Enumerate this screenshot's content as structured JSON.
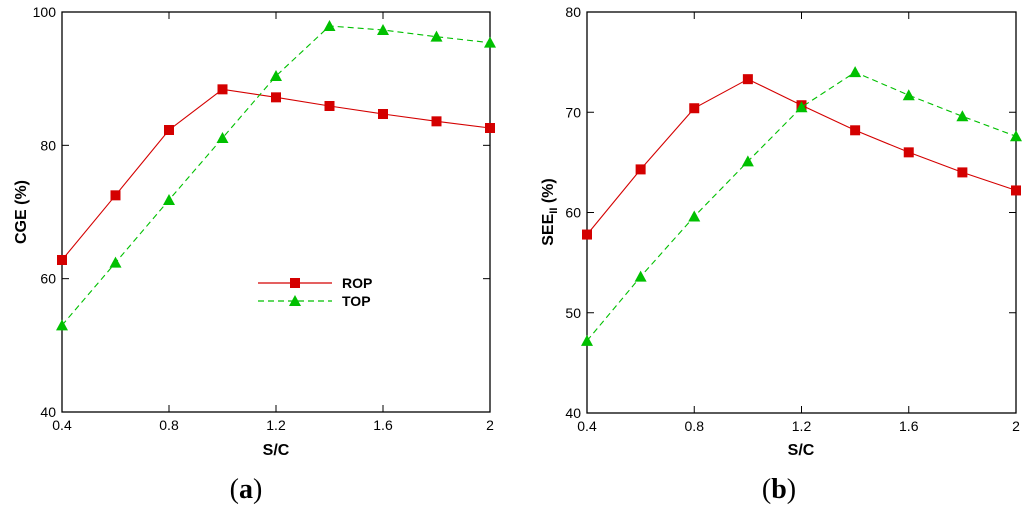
{
  "chart_data": [
    {
      "type": "line",
      "panel_label": "(a)",
      "panel_letter": "a",
      "xlabel": "S/C",
      "ylabel": "CGE (%)",
      "xlim": [
        0.4,
        2.0
      ],
      "ylim": [
        40,
        100
      ],
      "xticks": [
        0.4,
        0.8,
        1.2,
        1.6,
        2.0
      ],
      "xtick_labels": [
        "0.4",
        "0.8",
        "1.2",
        "1.6",
        "2"
      ],
      "yticks": [
        40,
        60,
        80,
        100
      ],
      "ytick_labels": [
        "40",
        "60",
        "80",
        "100"
      ],
      "legend": "inside, lower-middle",
      "x": [
        0.4,
        0.6,
        0.8,
        1.0,
        1.2,
        1.4,
        1.6,
        1.8,
        2.0
      ],
      "series": [
        {
          "name": "ROP",
          "color": "#d40000",
          "marker": "square",
          "line": "solid",
          "values": [
            62.8,
            72.5,
            82.3,
            88.4,
            87.2,
            85.9,
            84.7,
            83.6,
            82.6
          ]
        },
        {
          "name": "TOP",
          "color": "#00c000",
          "marker": "triangle",
          "line": "dashed",
          "values": [
            53.0,
            62.4,
            71.8,
            81.1,
            90.4,
            97.9,
            97.3,
            96.3,
            95.4
          ]
        }
      ]
    },
    {
      "type": "line",
      "panel_label": "(b)",
      "panel_letter": "b",
      "xlabel": "S/C",
      "ylabel": "SEE",
      "ylabel_sub": "II",
      "ylabel_suffix": " (%)",
      "xlim": [
        0.4,
        2.0
      ],
      "ylim": [
        40,
        80
      ],
      "xticks": [
        0.4,
        0.8,
        1.2,
        1.6,
        2.0
      ],
      "xtick_labels": [
        "0.4",
        "0.8",
        "1.2",
        "1.6",
        "2"
      ],
      "yticks": [
        40,
        50,
        60,
        70,
        80
      ],
      "ytick_labels": [
        "40",
        "50",
        "60",
        "70",
        "80"
      ],
      "x": [
        0.4,
        0.6,
        0.8,
        1.0,
        1.2,
        1.4,
        1.6,
        1.8,
        2.0
      ],
      "series": [
        {
          "name": "ROP",
          "color": "#d40000",
          "marker": "square",
          "line": "solid",
          "values": [
            57.8,
            64.3,
            70.4,
            73.3,
            70.7,
            68.2,
            66.0,
            64.0,
            62.2
          ]
        },
        {
          "name": "TOP",
          "color": "#00c000",
          "marker": "triangle",
          "line": "dashed",
          "values": [
            47.2,
            53.6,
            59.6,
            65.1,
            70.5,
            74.0,
            71.7,
            69.6,
            67.6
          ]
        }
      ]
    }
  ]
}
